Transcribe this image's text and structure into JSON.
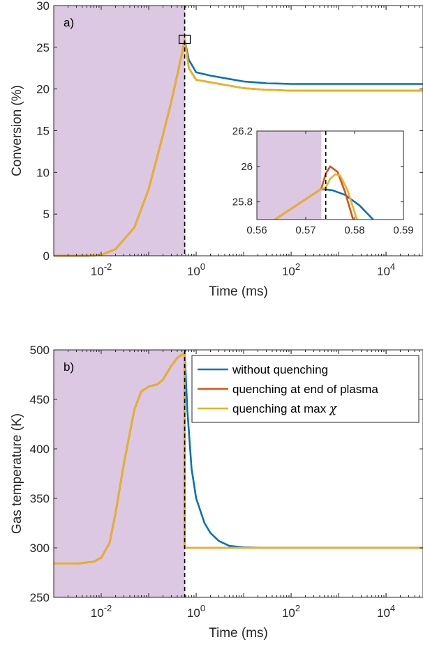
{
  "colors": {
    "plasma_shade": "#dcc8e2",
    "blue": "#0072bd",
    "red": "#d95319",
    "yellow": "#edb120",
    "axis": "#262626"
  },
  "chart_data": [
    {
      "type": "line",
      "panel_label": "a)",
      "xlabel": "Time (ms)",
      "ylabel": "Conversion (%)",
      "xscale": "log",
      "xlim": [
        0.001,
        60000
      ],
      "ylim": [
        0,
        30
      ],
      "x_ticks": [
        0.01,
        1,
        100,
        10000
      ],
      "x_tick_labels": [
        {
          "base": "10",
          "exp": "-2"
        },
        {
          "base": "10",
          "exp": "0"
        },
        {
          "base": "10",
          "exp": "2"
        },
        {
          "base": "10",
          "exp": "4"
        }
      ],
      "y_ticks": [
        0,
        5,
        10,
        15,
        20,
        25,
        30
      ],
      "y_tick_labels": [
        "0",
        "5",
        "10",
        "15",
        "20",
        "25",
        "30"
      ],
      "plasma_end_ms": 0.573,
      "series": [
        {
          "color_key": "blue",
          "x": [
            0.001,
            0.005,
            0.01,
            0.02,
            0.05,
            0.1,
            0.2,
            0.3,
            0.4,
            0.5,
            0.573,
            0.7,
            1,
            2,
            5,
            10,
            30,
            100,
            1000,
            10000,
            60000
          ],
          "y": [
            0,
            0,
            0.1,
            0.8,
            3.4,
            8,
            14.5,
            18.5,
            21.7,
            24.2,
            25.9,
            23.5,
            22,
            21.6,
            21.2,
            20.9,
            20.7,
            20.6,
            20.6,
            20.6,
            20.6
          ]
        },
        {
          "color_key": "red",
          "x": [
            0.001,
            0.005,
            0.01,
            0.02,
            0.05,
            0.1,
            0.2,
            0.3,
            0.4,
            0.5,
            0.573,
            0.7,
            1,
            2,
            5,
            10,
            30,
            100,
            1000,
            10000,
            60000
          ],
          "y": [
            0,
            0,
            0.1,
            0.8,
            3.4,
            8,
            14.5,
            18.5,
            21.7,
            24.2,
            26.0,
            22.5,
            21.1,
            20.8,
            20.4,
            20.1,
            19.9,
            19.8,
            19.8,
            19.8,
            19.8
          ]
        },
        {
          "color_key": "yellow",
          "x": [
            0.001,
            0.005,
            0.01,
            0.02,
            0.05,
            0.1,
            0.2,
            0.3,
            0.4,
            0.5,
            0.573,
            0.7,
            1,
            2,
            5,
            10,
            30,
            100,
            1000,
            10000,
            60000
          ],
          "y": [
            0,
            0,
            0.1,
            0.8,
            3.4,
            8,
            14.5,
            18.5,
            21.7,
            24.2,
            25.95,
            22.5,
            21.1,
            20.8,
            20.4,
            20.1,
            19.9,
            19.8,
            19.8,
            19.8,
            19.8
          ]
        }
      ],
      "zoom_box": {
        "x": [
          0.56,
          0.59
        ],
        "y": [
          25.7,
          26.2
        ]
      },
      "inset": {
        "xscale": "linear",
        "xlim": [
          0.56,
          0.59
        ],
        "ylim": [
          25.7,
          26.2
        ],
        "x_ticks": [
          0.56,
          0.57,
          0.58,
          0.59
        ],
        "x_tick_labels": [
          "0.56",
          "0.57",
          "0.58",
          "0.59"
        ],
        "y_ticks": [
          25.8,
          26,
          26.2
        ],
        "y_tick_labels": [
          "25.8",
          "26",
          "26.2"
        ],
        "plasma_end_ms": 0.5732,
        "vline_ms": 0.5741,
        "series": [
          {
            "color_key": "blue",
            "x": [
              0.5637,
              0.573,
              0.5741,
              0.5755,
              0.578,
              0.581,
              0.5838
            ],
            "y": [
              25.7,
              25.87,
              25.87,
              25.865,
              25.84,
              25.78,
              25.7
            ]
          },
          {
            "color_key": "red",
            "x": [
              0.5637,
              0.573,
              0.5732,
              0.5741,
              0.575,
              0.5765,
              0.578,
              0.5797
            ],
            "y": [
              25.7,
              25.87,
              25.875,
              25.96,
              26.0,
              25.97,
              25.86,
              25.7
            ]
          },
          {
            "color_key": "yellow",
            "x": [
              0.5637,
              0.573,
              0.5741,
              0.575,
              0.576,
              0.577,
              0.5785,
              0.5805
            ],
            "y": [
              25.7,
              25.87,
              25.88,
              25.93,
              25.955,
              25.95,
              25.87,
              25.7
            ]
          }
        ]
      }
    },
    {
      "type": "line",
      "panel_label": "b)",
      "xlabel": "Time (ms)",
      "ylabel": "Gas temperature (K)",
      "xscale": "log",
      "xlim": [
        0.001,
        60000
      ],
      "ylim": [
        250,
        500
      ],
      "x_ticks": [
        0.01,
        1,
        100,
        10000
      ],
      "x_tick_labels": [
        {
          "base": "10",
          "exp": "-2"
        },
        {
          "base": "10",
          "exp": "0"
        },
        {
          "base": "10",
          "exp": "2"
        },
        {
          "base": "10",
          "exp": "4"
        }
      ],
      "y_ticks": [
        250,
        300,
        350,
        400,
        450,
        500
      ],
      "y_tick_labels": [
        "250",
        "300",
        "350",
        "400",
        "450",
        "500"
      ],
      "plasma_end_ms": 0.573,
      "legend": {
        "placement": "top-right",
        "entries": [
          {
            "label": "without quenching",
            "color_key": "blue"
          },
          {
            "label": "quenching at end of plasma",
            "color_key": "red"
          },
          {
            "label": "quenching at max ",
            "symbol": "χ",
            "color_key": "yellow"
          }
        ]
      },
      "series": [
        {
          "color_key": "blue",
          "x": [
            0.001,
            0.003,
            0.007,
            0.01,
            0.015,
            0.02,
            0.03,
            0.05,
            0.07,
            0.1,
            0.15,
            0.2,
            0.3,
            0.4,
            0.5,
            0.573,
            0.65,
            0.8,
            1,
            1.5,
            2,
            3,
            5,
            10,
            30,
            100,
            1000,
            60000
          ],
          "y": [
            284,
            284,
            286,
            290,
            305,
            335,
            385,
            440,
            458,
            463,
            465,
            470,
            484,
            492,
            495,
            497,
            440,
            380,
            350,
            325,
            315,
            307,
            302,
            300.5,
            300,
            300,
            300,
            300
          ]
        },
        {
          "color_key": "red",
          "x": [
            0.001,
            0.003,
            0.007,
            0.01,
            0.015,
            0.02,
            0.03,
            0.05,
            0.07,
            0.1,
            0.15,
            0.2,
            0.3,
            0.4,
            0.5,
            0.573,
            0.573,
            60000
          ],
          "y": [
            284,
            284,
            286,
            290,
            305,
            335,
            385,
            440,
            458,
            463,
            465,
            470,
            484,
            492,
            495,
            497,
            300,
            300
          ]
        },
        {
          "color_key": "yellow",
          "x": [
            0.001,
            0.003,
            0.007,
            0.01,
            0.015,
            0.02,
            0.03,
            0.05,
            0.07,
            0.1,
            0.15,
            0.2,
            0.3,
            0.4,
            0.5,
            0.573,
            0.574,
            60000
          ],
          "y": [
            284,
            284,
            286,
            290,
            305,
            335,
            385,
            440,
            458,
            463,
            465,
            470,
            484,
            492,
            495,
            497,
            300,
            300
          ]
        }
      ]
    }
  ]
}
